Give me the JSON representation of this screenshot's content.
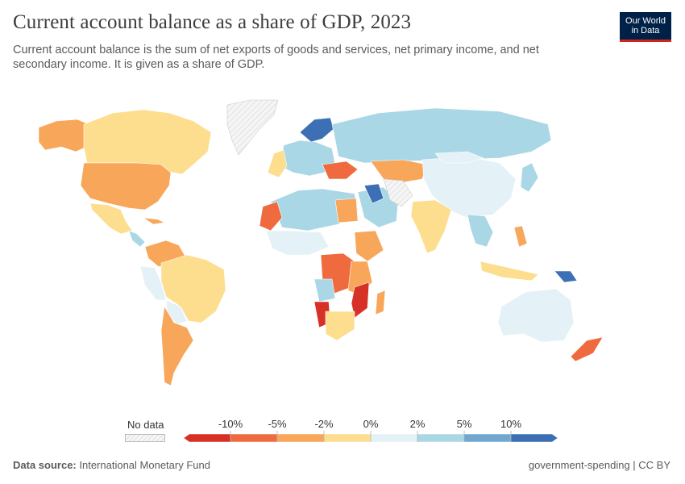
{
  "header": {
    "title": "Current account balance as a share of GDP, 2023",
    "subtitle": "Current account balance is the sum of net exports of goods and services, net primary income, and net secondary income. It is given as a share of GDP."
  },
  "logo": {
    "line1": "Our World",
    "line2": "in Data",
    "bg_color": "#002147",
    "accent_color": "#ce261e"
  },
  "legend": {
    "no_data_label": "No data",
    "ticks": [
      "-10%",
      "-5%",
      "-2%",
      "0%",
      "2%",
      "5%",
      "10%"
    ],
    "bin_colors": [
      "#d73027",
      "#ef6b3f",
      "#f7a65a",
      "#fdde8f",
      "#e4f2f7",
      "#aad7e6",
      "#71a8cf",
      "#3c6fb3"
    ]
  },
  "map_data": {
    "type": "choropleth",
    "value": "current account balance (% of GDP)",
    "year": 2023,
    "regions": [
      {
        "region": "Canada",
        "bin": "-2% to 0%"
      },
      {
        "region": "United States",
        "bin": "-5% to -2%"
      },
      {
        "region": "Mexico",
        "bin": "-2% to 0%"
      },
      {
        "region": "Brazil",
        "bin": "-2% to 0%"
      },
      {
        "region": "Argentina",
        "bin": "-5% to -2%"
      },
      {
        "region": "Russia",
        "bin": "2% to 5%"
      },
      {
        "region": "China",
        "bin": "0% to 2%"
      },
      {
        "region": "India",
        "bin": "-2% to 0%"
      },
      {
        "region": "Australia",
        "bin": "0% to 2%"
      },
      {
        "region": "Saudi Arabia",
        "bin": "2% to 5%"
      },
      {
        "region": "Norway",
        "bin": "above 10%"
      },
      {
        "region": "Namibia",
        "bin": "below -10%"
      },
      {
        "region": "Mozambique",
        "bin": "below -10%"
      },
      {
        "region": "DR Congo",
        "bin": "-10% to -5%"
      },
      {
        "region": "New Zealand",
        "bin": "-10% to -5%"
      },
      {
        "region": "Greenland",
        "bin": "no data"
      }
    ]
  },
  "footer": {
    "source_label": "Data source:",
    "source": "International Monetary Fund",
    "attribution": "government-spending | CC BY"
  }
}
